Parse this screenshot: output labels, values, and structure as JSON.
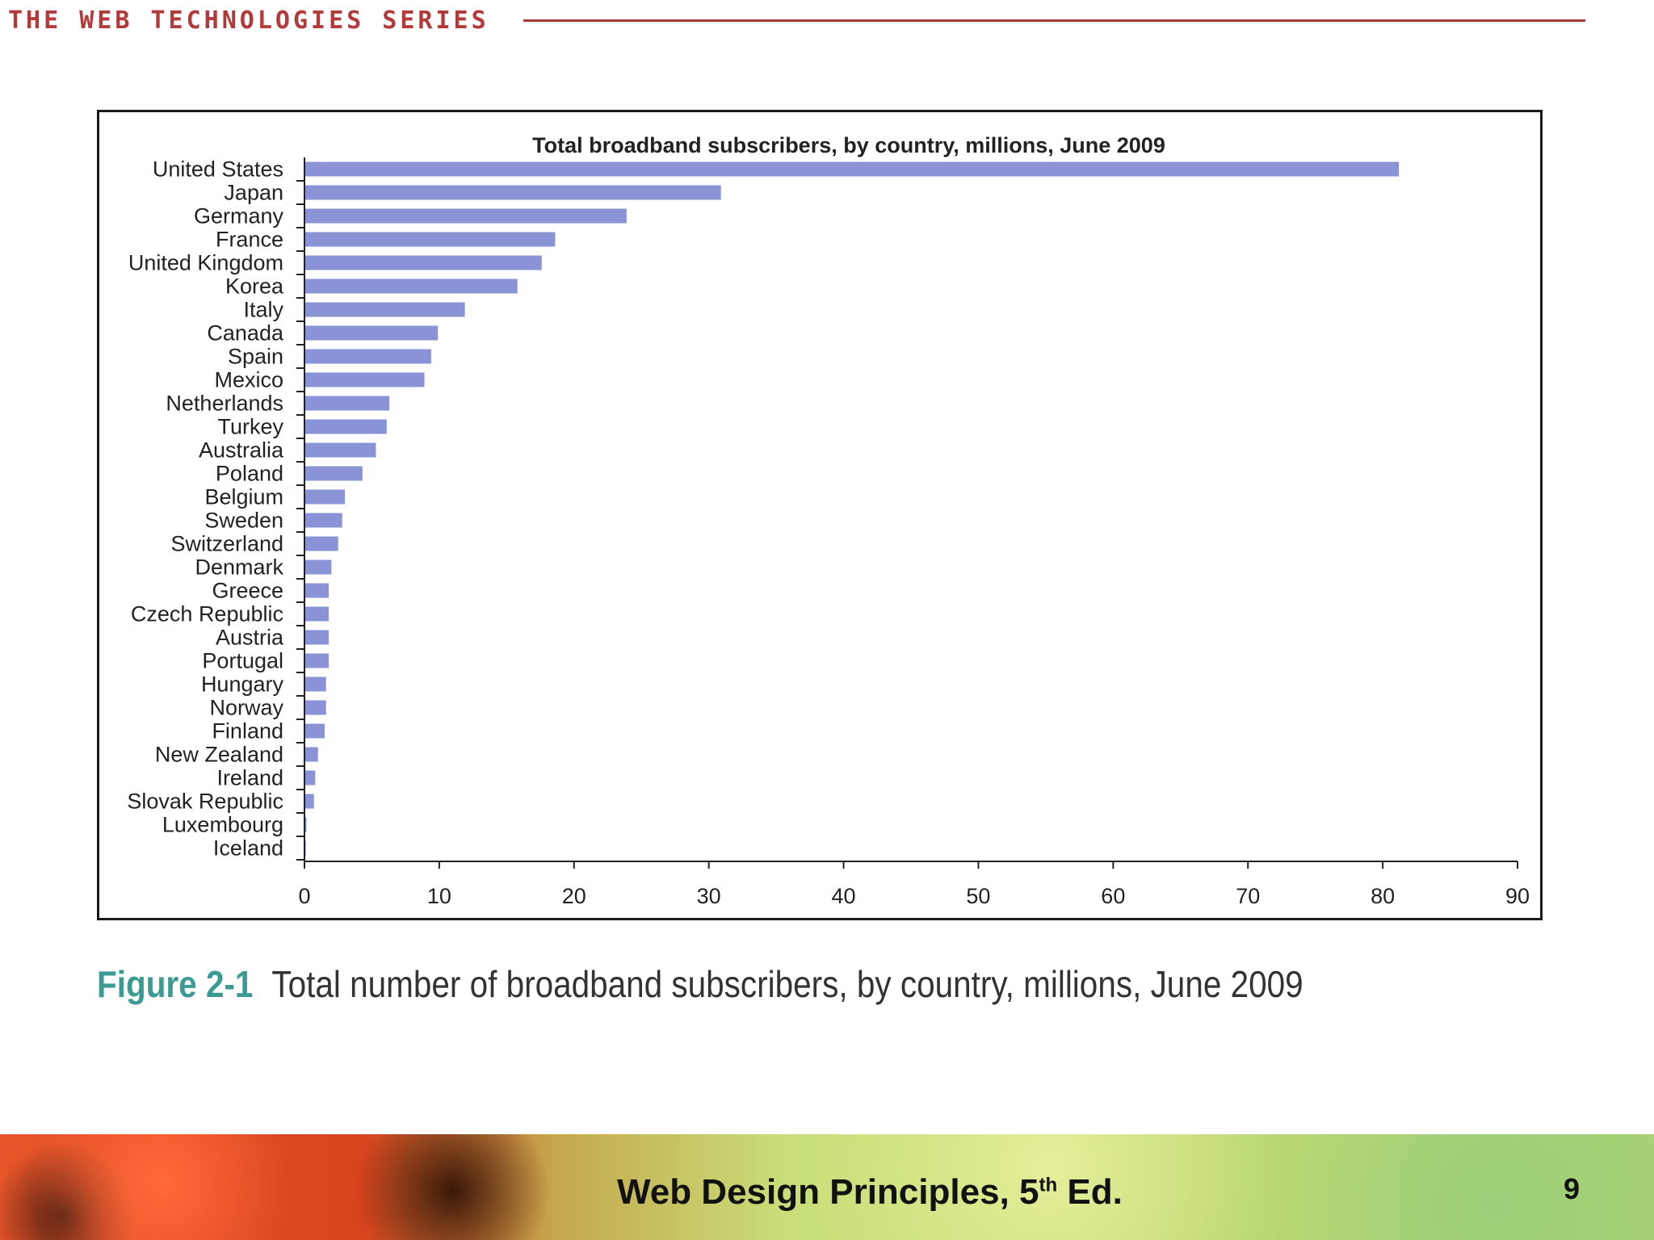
{
  "header": {
    "series_title": "THE WEB TECHNOLOGIES SERIES"
  },
  "chart_data": {
    "type": "bar",
    "orientation": "horizontal",
    "title": "Total  broadband subscribers, by country, millions, June 2009",
    "xlabel": "",
    "ylabel": "",
    "xlim": [
      0,
      90
    ],
    "xticks": [
      0,
      10,
      20,
      30,
      40,
      50,
      60,
      70,
      80,
      90
    ],
    "bar_color": "#8a93d6",
    "categories": [
      "United States",
      "Japan",
      "Germany",
      "France",
      "United Kingdom",
      "Korea",
      "Italy",
      "Canada",
      "Spain",
      "Mexico",
      "Netherlands",
      "Turkey",
      "Australia",
      "Poland",
      "Belgium",
      "Sweden",
      "Switzerland",
      "Denmark",
      "Greece",
      "Czech Republic",
      "Austria",
      "Portugal",
      "Hungary",
      "Norway",
      "Finland",
      "New Zealand",
      "Ireland",
      "Slovak Republic",
      "Luxembourg",
      "Iceland"
    ],
    "values": [
      81.2,
      30.9,
      23.9,
      18.6,
      17.6,
      15.8,
      11.9,
      9.9,
      9.4,
      8.9,
      6.3,
      6.1,
      5.3,
      4.3,
      3.0,
      2.8,
      2.5,
      2.0,
      1.8,
      1.8,
      1.8,
      1.8,
      1.6,
      1.6,
      1.5,
      1.0,
      0.8,
      0.7,
      0.15,
      0.1
    ]
  },
  "caption": {
    "label": "Figure 2-1",
    "text": "Total number of broadband subscribers, by country, millions, June 2009"
  },
  "footer": {
    "book_title_prefix": "Web Design Principles, 5",
    "book_title_sup": "th",
    "book_title_suffix": " Ed.",
    "page_number": "9"
  }
}
